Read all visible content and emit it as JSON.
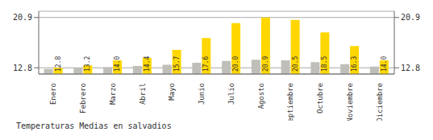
{
  "chart_data": {
    "type": "bar",
    "title": "Temperaturas Medias en salvadios",
    "categories": [
      "Enero",
      "Febrero",
      "Marzo",
      "Abril",
      "Mayo",
      "Junio",
      "Julio",
      "Agosto",
      "Septiembre",
      "Octubre",
      "Noviembre",
      "Diciembre"
    ],
    "series": [
      {
        "color": "#C0BEB8",
        "values": [
          12.6,
          12.7,
          12.9,
          13.1,
          13.3,
          13.6,
          13.9,
          14.1,
          14.0,
          13.7,
          13.4,
          13.0
        ]
      },
      {
        "color": "#FFD700",
        "values": [
          12.8,
          13.2,
          14.0,
          14.4,
          15.7,
          17.6,
          20.0,
          20.9,
          20.5,
          18.5,
          16.3,
          14.0
        ],
        "value_labels": [
          "12.8",
          "13.2",
          "14.0",
          "14.4",
          "15.7",
          "17.6",
          "20.0",
          "20.9",
          "20.5",
          "18.5",
          "16.3",
          "14.0"
        ],
        "data_labels": true
      }
    ],
    "ylim": [
      11.8,
      21.9
    ],
    "yticks": [
      12.8,
      20.9
    ],
    "y2lim": [
      11.8,
      21.9
    ],
    "y2ticks": [
      12.8,
      20.9
    ],
    "grid": true
  }
}
